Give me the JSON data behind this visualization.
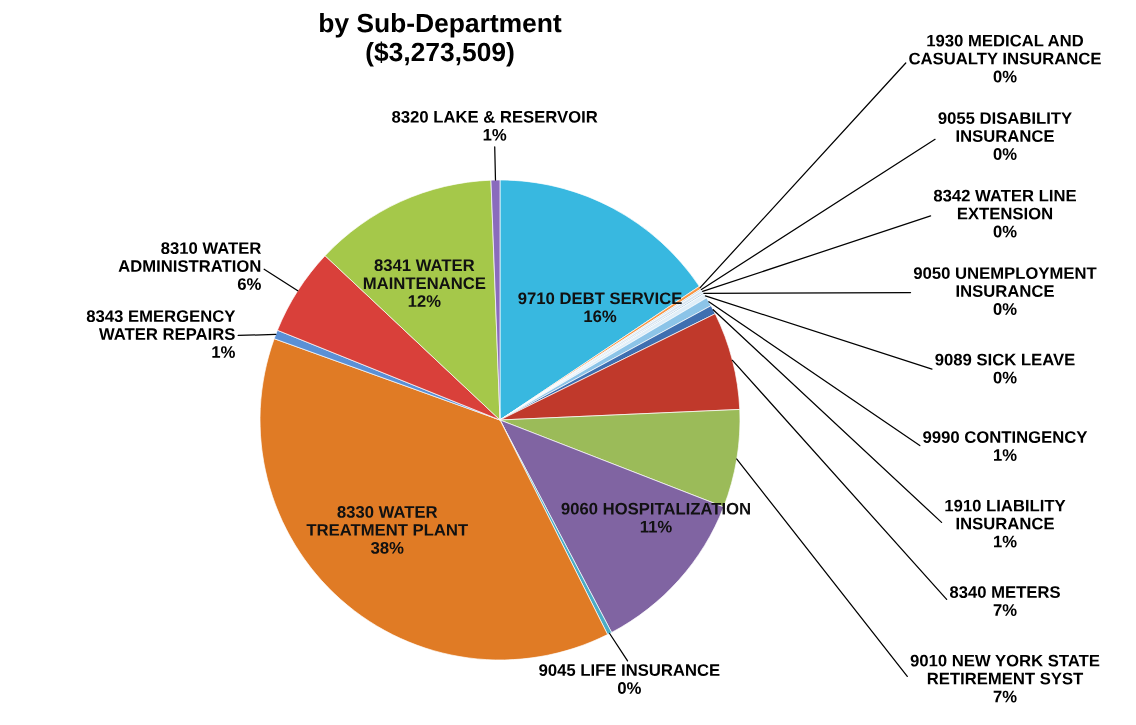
{
  "chart_data": {
    "type": "pie",
    "title": "by Sub-Department\n($3,273,509)",
    "categories": [
      "9710 DEBT SERVICE",
      "1930 MEDICAL AND\nCASUALTY INSURANCE",
      "9055 DISABILITY\nINSURANCE",
      "8342 WATER LINE\nEXTENSION",
      "9050 UNEMPLOYMENT\nINSURANCE",
      "9089 SICK LEAVE",
      "9990 CONTINGENCY",
      "1910 LIABILITY\nINSURANCE",
      "8340 METERS",
      "9010 NEW YORK STATE\nRETIREMENT SYST",
      "9060 HOSPITALIZATION",
      "9045 LIFE INSURANCE",
      "8330 WATER\nTREATMENT PLANT",
      "8343 EMERGENCY\nWATER REPAIRS",
      "8310 WATER\nADMINISTRATION",
      "8341 WATER\nMAINTENANCE",
      "8320 LAKE & RESERVOIR"
    ],
    "values": [
      15.6,
      0.2,
      0.1,
      0.2,
      0.1,
      0.3,
      0.6,
      0.6,
      6.6,
      6.6,
      11.4,
      0.3,
      37.9,
      0.6,
      5.9,
      12.4,
      0.6
    ],
    "value_labels": [
      "16%",
      "0%",
      "0%",
      "0%",
      "0%",
      "0%",
      "1%",
      "1%",
      "7%",
      "7%",
      "11%",
      "0%",
      "38%",
      "1%",
      "6%",
      "12%",
      "1%"
    ],
    "colors": [
      "#38b8e0",
      "#f79646",
      "#c0d8e8",
      "#d9e6f2",
      "#a6c8e0",
      "#e0eef8",
      "#8cc4e8",
      "#3f6fb0",
      "#c0392b",
      "#9bbb59",
      "#8064a2",
      "#4bacc6",
      "#e07b25",
      "#5a90d6",
      "#d9403a",
      "#a5c84a",
      "#8a6bbd"
    ]
  }
}
